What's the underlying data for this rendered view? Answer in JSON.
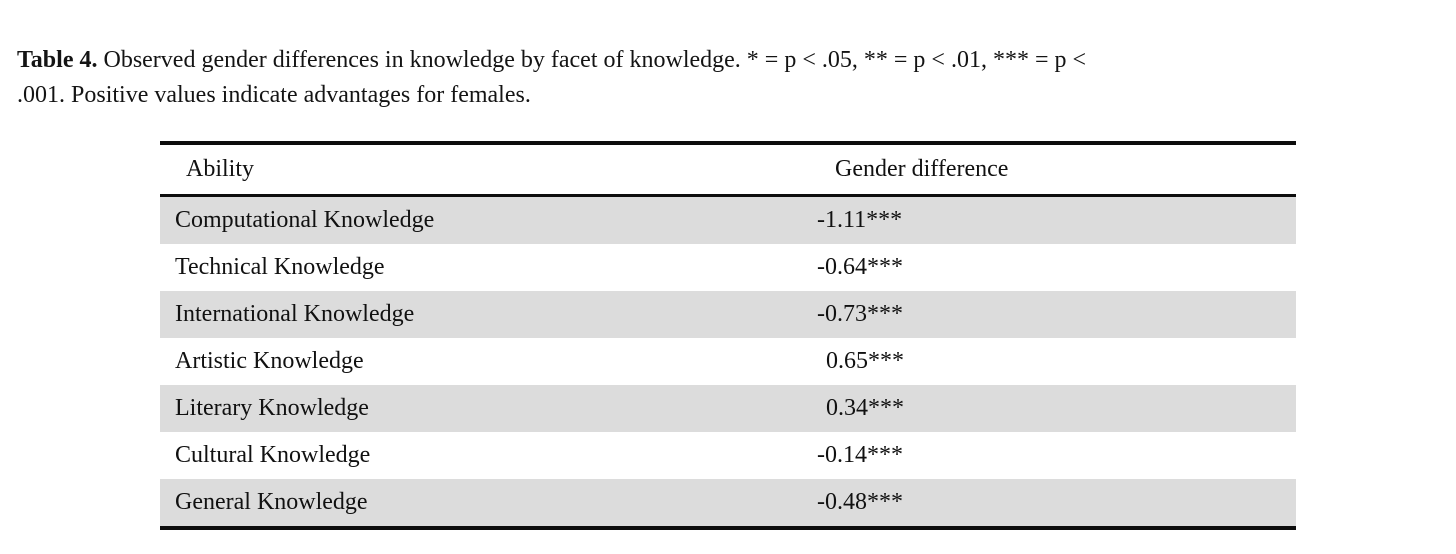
{
  "caption": {
    "label": "Table 4.",
    "line1_rest": "Observed gender differences in knowledge by facet of knowledge. * = p < .05, ** = p < .01, *** = p <",
    "line2": ".001. Positive values indicate advantages for females."
  },
  "table": {
    "columns": [
      "Ability",
      "Gender difference"
    ],
    "rows": [
      {
        "ability": "Computational Knowledge",
        "gender_difference": "-1.11***"
      },
      {
        "ability": "Technical Knowledge",
        "gender_difference": "-0.64***"
      },
      {
        "ability": "International Knowledge",
        "gender_difference": "-0.73***"
      },
      {
        "ability": "Artistic Knowledge",
        "gender_difference": "0.65***"
      },
      {
        "ability": "Literary Knowledge",
        "gender_difference": "0.34***"
      },
      {
        "ability": "Cultural Knowledge",
        "gender_difference": "-0.14***"
      },
      {
        "ability": "General Knowledge",
        "gender_difference": "-0.48***"
      }
    ],
    "stripe_color": "#dcdcdc",
    "rule_color": "#0d0d0d"
  }
}
